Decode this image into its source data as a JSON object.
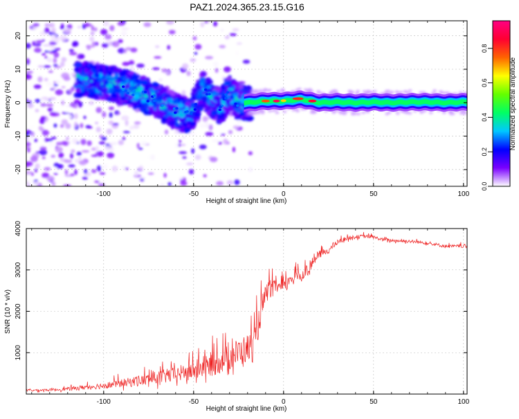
{
  "page": {
    "title": "PAZ1.2024.365.23.15.G16"
  },
  "chart_data": [
    {
      "type": "heatmap",
      "title": "PAZ1.2024.365.23.15.G16",
      "xlabel": "Height of straight line (km)",
      "ylabel": "Frequency (Hz)",
      "xlim": [
        -143,
        102
      ],
      "ylim": [
        -25,
        24.5
      ],
      "xticks": [
        -100,
        -50,
        0,
        50,
        100
      ],
      "yticks": [
        -20,
        -10,
        0,
        10,
        20
      ],
      "grid": true,
      "colorbar": {
        "label": "Normalized spectral amplitude",
        "range": [
          0,
          0.96
        ],
        "ticks": [
          0.0,
          0.2,
          0.4,
          0.6,
          0.8
        ],
        "tick_labels": [
          "0.0",
          "0.2",
          "0.4",
          "0.6",
          "0.8"
        ],
        "colormap": "rainbow",
        "stops": [
          "#ffffff",
          "#7a00ff",
          "#0000ff",
          "#00c8ff",
          "#00ff64",
          "#64ff00",
          "#ffff00",
          "#ff6400",
          "#ff0032",
          "#ff0082"
        ]
      },
      "ridge": [
        [
          -110,
          7
        ],
        [
          -100,
          6
        ],
        [
          -90,
          5
        ],
        [
          -80,
          3
        ],
        [
          -72,
          1
        ],
        [
          -65,
          -1
        ],
        [
          -58,
          -3
        ],
        [
          -52,
          -4
        ],
        [
          -45,
          4
        ],
        [
          -40,
          1
        ],
        [
          -35,
          -1
        ],
        [
          -30,
          3
        ],
        [
          -25,
          0
        ],
        [
          -20,
          0
        ],
        [
          -10,
          0.5
        ],
        [
          0,
          0.5
        ],
        [
          10,
          1
        ],
        [
          20,
          0
        ],
        [
          30,
          0.2
        ],
        [
          40,
          0
        ],
        [
          50,
          0.2
        ],
        [
          60,
          0
        ],
        [
          70,
          0.2
        ],
        [
          80,
          0.2
        ],
        [
          90,
          0
        ],
        [
          100,
          0.2
        ]
      ]
    },
    {
      "type": "line",
      "xlabel": "Height of straight line (km)",
      "ylabel": "SNR (10 * v/v)",
      "xlim": [
        -143,
        102
      ],
      "ylim": [
        0,
        4000
      ],
      "xticks": [
        -100,
        -50,
        0,
        50,
        100
      ],
      "yticks": [
        1000,
        2000,
        3000,
        4000
      ],
      "grid": true,
      "series": [
        {
          "color": "#ee2222",
          "x": [
            -143,
            -130,
            -120,
            -110,
            -100,
            -90,
            -80,
            -70,
            -60,
            -50,
            -45,
            -40,
            -35,
            -30,
            -25,
            -20,
            -16,
            -14,
            -12,
            -10,
            -8,
            -6,
            -4,
            -2,
            0,
            2,
            4,
            6,
            8,
            10,
            12,
            14,
            16,
            18,
            20,
            25,
            30,
            35,
            40,
            45,
            50,
            55,
            60,
            70,
            80,
            90,
            100,
            102
          ],
          "y": [
            80,
            90,
            110,
            150,
            180,
            230,
            280,
            350,
            420,
            500,
            560,
            620,
            700,
            800,
            900,
            1000,
            1050,
            1600,
            2000,
            2300,
            2500,
            2450,
            2600,
            2500,
            2550,
            2600,
            2800,
            2700,
            2900,
            2750,
            3000,
            2900,
            3150,
            3250,
            3350,
            3450,
            3650,
            3750,
            3780,
            3800,
            3780,
            3720,
            3700,
            3680,
            3640,
            3560,
            3560,
            3550
          ],
          "spread": [
            50,
            60,
            80,
            120,
            150,
            200,
            260,
            320,
            380,
            450,
            500,
            550,
            600,
            650,
            700,
            700,
            800,
            700,
            600,
            500,
            450,
            400,
            350,
            330,
            300,
            300,
            300,
            300,
            280,
            260,
            250,
            240,
            220,
            200,
            180,
            150,
            120,
            100,
            90,
            90,
            80,
            80,
            80,
            80,
            80,
            80,
            80,
            80
          ]
        }
      ]
    }
  ]
}
